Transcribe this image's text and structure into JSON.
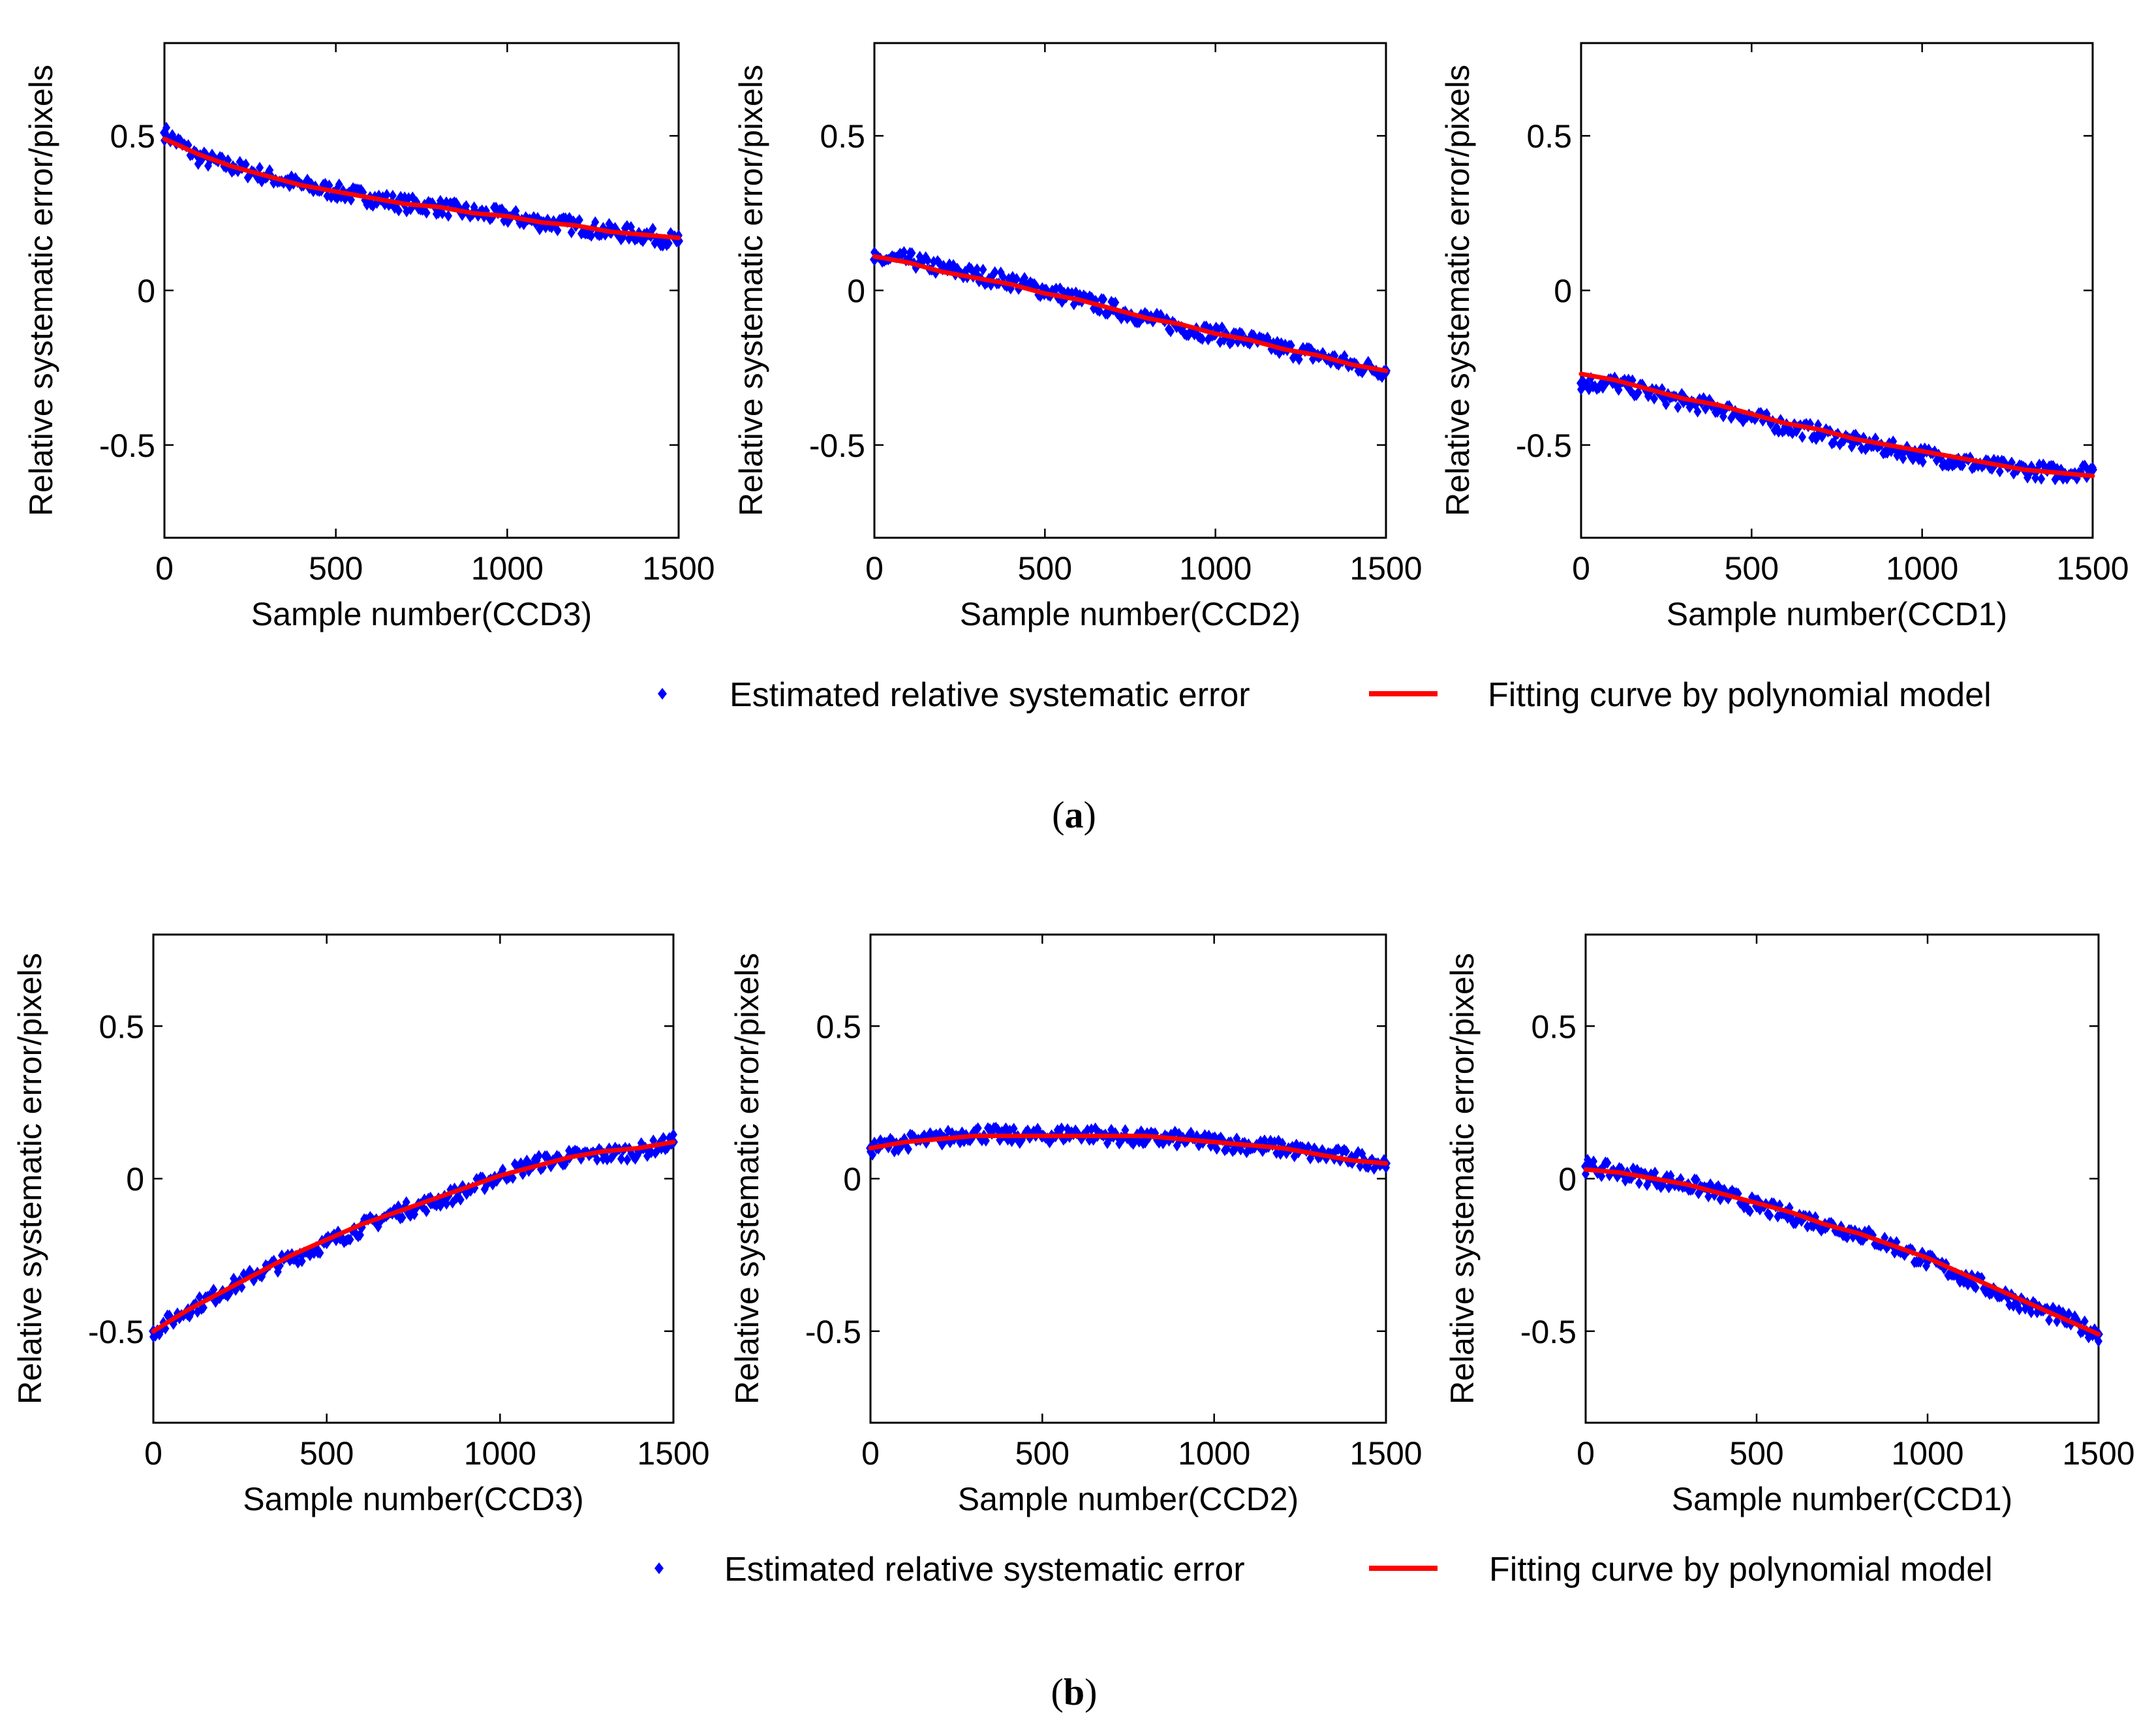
{
  "figure": {
    "legend_a": {
      "markers_label": "Estimated relative systematic error",
      "line_label": "Fitting curve by polynomial model"
    },
    "legend_b": {
      "markers_label": "Estimated relative systematic error",
      "line_label": "Fitting curve by polynomial model"
    },
    "caption_a": {
      "open": "(",
      "letter": "a",
      "close": ")"
    },
    "caption_b": {
      "open": "(",
      "letter": "b",
      "close": ")"
    },
    "colors": {
      "markers": "#0000ff",
      "line": "#ff0000",
      "axes": "#000000"
    }
  },
  "chart_data": [
    {
      "id": "a-ccd3",
      "row": "a",
      "type": "scatter",
      "xlabel": "Sample number(CCD3)",
      "ylabel": "Relative systematic error/pixels",
      "xlim": [
        0,
        1500
      ],
      "ylim": [
        -0.8,
        0.8
      ],
      "xticks": [
        0,
        500,
        1000,
        1500
      ],
      "xtick_labels": [
        "0",
        "500",
        "1000",
        "1500"
      ],
      "yticks": [
        -0.5,
        0,
        0.5
      ],
      "ytick_labels": [
        "-0.5",
        "0",
        "0.5"
      ],
      "series": [
        {
          "name": "Estimated relative systematic error",
          "kind": "markers",
          "x": [
            0,
            100,
            200,
            300,
            400,
            500,
            600,
            700,
            800,
            900,
            1000,
            1100,
            1200,
            1300,
            1400,
            1500
          ],
          "y": [
            0.51,
            0.43,
            0.4,
            0.37,
            0.34,
            0.32,
            0.3,
            0.28,
            0.27,
            0.25,
            0.24,
            0.22,
            0.21,
            0.19,
            0.18,
            0.16
          ]
        },
        {
          "name": "Fitting curve by polynomial model",
          "kind": "line",
          "x": [
            0,
            100,
            200,
            300,
            400,
            500,
            600,
            700,
            800,
            900,
            1000,
            1100,
            1200,
            1300,
            1400,
            1500
          ],
          "y": [
            0.49,
            0.44,
            0.4,
            0.37,
            0.34,
            0.32,
            0.3,
            0.28,
            0.27,
            0.25,
            0.24,
            0.22,
            0.21,
            0.19,
            0.18,
            0.17
          ]
        }
      ]
    },
    {
      "id": "a-ccd2",
      "row": "a",
      "type": "scatter",
      "xlabel": "Sample number(CCD2)",
      "ylabel": "Relative systematic error/pixels",
      "xlim": [
        0,
        1500
      ],
      "ylim": [
        -0.8,
        0.8
      ],
      "xticks": [
        0,
        500,
        1000,
        1500
      ],
      "xtick_labels": [
        "0",
        "500",
        "1000",
        "1500"
      ],
      "yticks": [
        -0.5,
        0,
        0.5
      ],
      "ytick_labels": [
        "-0.5",
        "0",
        "0.5"
      ],
      "series": [
        {
          "name": "Estimated relative systematic error",
          "kind": "markers",
          "x": [
            0,
            100,
            200,
            300,
            400,
            500,
            600,
            700,
            800,
            900,
            1000,
            1100,
            1200,
            1300,
            1400,
            1500
          ],
          "y": [
            0.1,
            0.1,
            0.07,
            0.05,
            0.03,
            0.0,
            -0.03,
            -0.06,
            -0.09,
            -0.12,
            -0.14,
            -0.16,
            -0.19,
            -0.21,
            -0.24,
            -0.26
          ]
        },
        {
          "name": "Fitting curve by polynomial model",
          "kind": "line",
          "x": [
            0,
            100,
            200,
            300,
            400,
            500,
            600,
            700,
            800,
            900,
            1000,
            1100,
            1200,
            1300,
            1400,
            1500
          ],
          "y": [
            0.11,
            0.09,
            0.06,
            0.04,
            0.02,
            -0.01,
            -0.03,
            -0.06,
            -0.09,
            -0.11,
            -0.14,
            -0.16,
            -0.19,
            -0.21,
            -0.24,
            -0.26
          ]
        }
      ]
    },
    {
      "id": "a-ccd1",
      "row": "a",
      "type": "scatter",
      "xlabel": "Sample number(CCD1)",
      "ylabel": "Relative systematic error/pixels",
      "xlim": [
        0,
        1500
      ],
      "ylim": [
        -0.8,
        0.8
      ],
      "xticks": [
        0,
        500,
        1000,
        1500
      ],
      "xtick_labels": [
        "0",
        "500",
        "1000",
        "1500"
      ],
      "yticks": [
        -0.5,
        0,
        0.5
      ],
      "ytick_labels": [
        "-0.5",
        "0",
        "0.5"
      ],
      "series": [
        {
          "name": "Estimated relative systematic error",
          "kind": "markers",
          "x": [
            0,
            100,
            200,
            300,
            400,
            500,
            600,
            700,
            800,
            900,
            1000,
            1100,
            1200,
            1300,
            1400,
            1500
          ],
          "y": [
            -0.3,
            -0.3,
            -0.33,
            -0.36,
            -0.38,
            -0.41,
            -0.44,
            -0.46,
            -0.49,
            -0.51,
            -0.53,
            -0.55,
            -0.57,
            -0.58,
            -0.59,
            -0.58
          ]
        },
        {
          "name": "Fitting curve by polynomial model",
          "kind": "line",
          "x": [
            0,
            100,
            200,
            300,
            400,
            500,
            600,
            700,
            800,
            900,
            1000,
            1100,
            1200,
            1300,
            1400,
            1500
          ],
          "y": [
            -0.27,
            -0.29,
            -0.32,
            -0.35,
            -0.37,
            -0.4,
            -0.43,
            -0.45,
            -0.48,
            -0.5,
            -0.52,
            -0.54,
            -0.56,
            -0.58,
            -0.59,
            -0.6
          ]
        }
      ]
    },
    {
      "id": "b-ccd3",
      "row": "b",
      "type": "scatter",
      "xlabel": "Sample number(CCD3)",
      "ylabel": "Relative systematic error/pixels",
      "xlim": [
        0,
        1500
      ],
      "ylim": [
        -0.8,
        0.8
      ],
      "xticks": [
        0,
        500,
        1000,
        1500
      ],
      "xtick_labels": [
        "0",
        "500",
        "1000",
        "1500"
      ],
      "yticks": [
        -0.5,
        0,
        0.5
      ],
      "ytick_labels": [
        "-0.5",
        "0",
        "0.5"
      ],
      "series": [
        {
          "name": "Estimated relative systematic error",
          "kind": "markers",
          "x": [
            0,
            100,
            200,
            300,
            400,
            500,
            600,
            700,
            800,
            900,
            1000,
            1100,
            1200,
            1300,
            1400,
            1500
          ],
          "y": [
            -0.5,
            -0.43,
            -0.37,
            -0.31,
            -0.26,
            -0.21,
            -0.16,
            -0.11,
            -0.08,
            -0.04,
            0.01,
            0.05,
            0.07,
            0.08,
            0.09,
            0.12
          ]
        },
        {
          "name": "Fitting curve by polynomial model",
          "kind": "line",
          "x": [
            0,
            100,
            200,
            300,
            400,
            500,
            600,
            700,
            800,
            900,
            1000,
            1100,
            1200,
            1300,
            1400,
            1500
          ],
          "y": [
            -0.5,
            -0.43,
            -0.37,
            -0.31,
            -0.25,
            -0.2,
            -0.15,
            -0.11,
            -0.07,
            -0.03,
            0.01,
            0.04,
            0.07,
            0.09,
            0.1,
            0.12
          ]
        }
      ]
    },
    {
      "id": "b-ccd2",
      "row": "b",
      "type": "scatter",
      "xlabel": "Sample number(CCD2)",
      "ylabel": "Relative systematic error/pixels",
      "xlim": [
        0,
        1500
      ],
      "ylim": [
        -0.8,
        0.8
      ],
      "xticks": [
        0,
        500,
        1000,
        1500
      ],
      "xtick_labels": [
        "0",
        "500",
        "1000",
        "1500"
      ],
      "yticks": [
        -0.5,
        0,
        0.5
      ],
      "ytick_labels": [
        "-0.5",
        "0",
        "0.5"
      ],
      "series": [
        {
          "name": "Estimated relative systematic error",
          "kind": "markers",
          "x": [
            0,
            100,
            200,
            300,
            400,
            500,
            600,
            700,
            800,
            900,
            1000,
            1100,
            1200,
            1300,
            1400,
            1500
          ],
          "y": [
            0.1,
            0.12,
            0.13,
            0.15,
            0.14,
            0.14,
            0.15,
            0.14,
            0.13,
            0.13,
            0.12,
            0.11,
            0.1,
            0.08,
            0.07,
            0.05
          ]
        },
        {
          "name": "Fitting curve by polynomial model",
          "kind": "line",
          "x": [
            0,
            100,
            200,
            300,
            400,
            500,
            600,
            700,
            800,
            900,
            1000,
            1100,
            1200,
            1300,
            1400,
            1500
          ],
          "y": [
            0.1,
            0.12,
            0.13,
            0.14,
            0.14,
            0.14,
            0.14,
            0.14,
            0.14,
            0.13,
            0.12,
            0.11,
            0.1,
            0.08,
            0.06,
            0.05
          ]
        }
      ]
    },
    {
      "id": "b-ccd1",
      "row": "b",
      "type": "scatter",
      "xlabel": "Sample number(CCD1)",
      "ylabel": "Relative systematic error/pixels",
      "xlim": [
        0,
        1500
      ],
      "ylim": [
        -0.8,
        0.8
      ],
      "xticks": [
        0,
        500,
        1000,
        1500
      ],
      "xtick_labels": [
        "0",
        "500",
        "1000",
        "1500"
      ],
      "yticks": [
        -0.5,
        0,
        0.5
      ],
      "ytick_labels": [
        "-0.5",
        "0",
        "0.5"
      ],
      "series": [
        {
          "name": "Estimated relative systematic error",
          "kind": "markers",
          "x": [
            0,
            100,
            200,
            300,
            400,
            500,
            600,
            700,
            800,
            900,
            1000,
            1100,
            1200,
            1300,
            1400,
            1500
          ],
          "y": [
            0.04,
            0.02,
            0.0,
            -0.02,
            -0.05,
            -0.09,
            -0.12,
            -0.15,
            -0.18,
            -0.22,
            -0.27,
            -0.32,
            -0.37,
            -0.42,
            -0.46,
            -0.51
          ]
        },
        {
          "name": "Fitting curve by polynomial model",
          "kind": "line",
          "x": [
            0,
            100,
            200,
            300,
            400,
            500,
            600,
            700,
            800,
            900,
            1000,
            1100,
            1200,
            1300,
            1400,
            1500
          ],
          "y": [
            0.03,
            0.02,
            0.0,
            -0.02,
            -0.05,
            -0.08,
            -0.11,
            -0.15,
            -0.18,
            -0.22,
            -0.26,
            -0.31,
            -0.36,
            -0.41,
            -0.46,
            -0.51
          ]
        }
      ]
    }
  ]
}
